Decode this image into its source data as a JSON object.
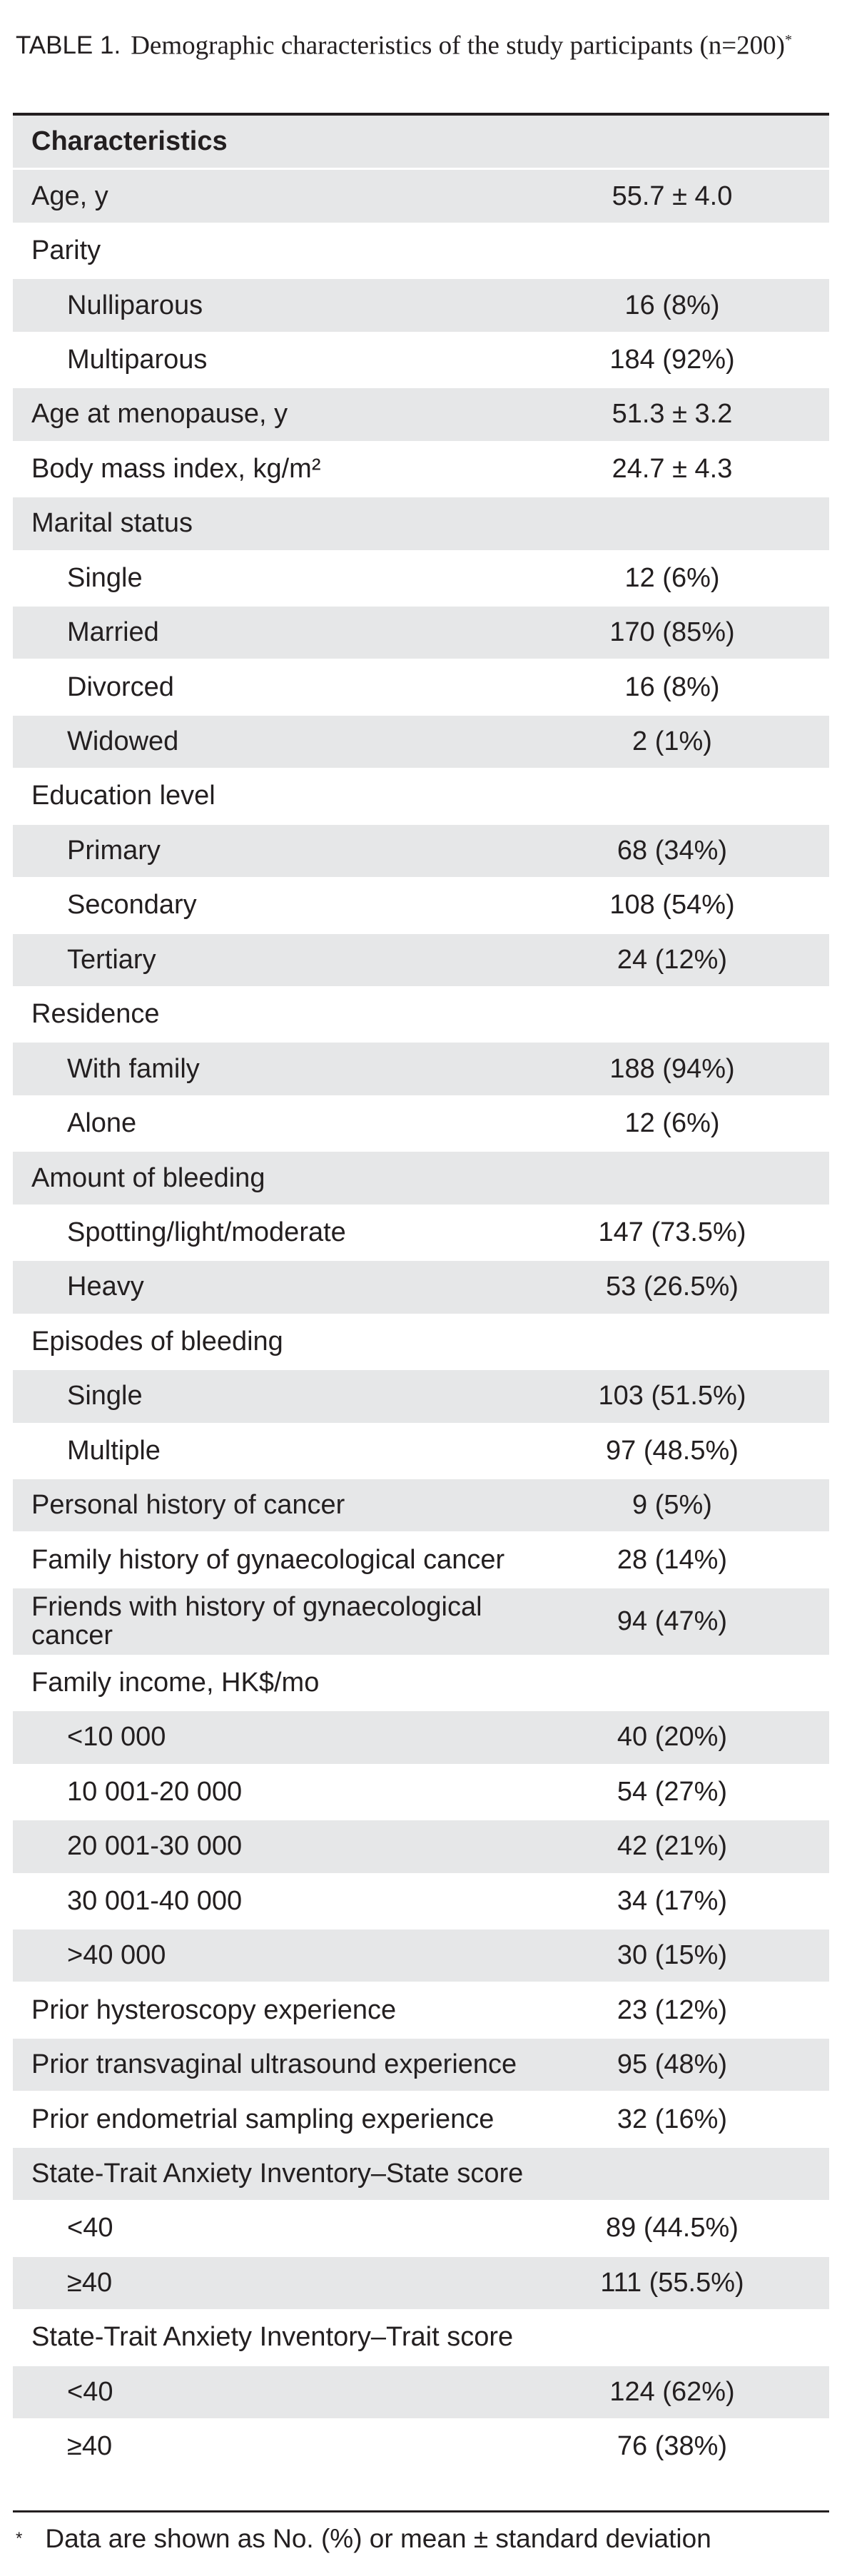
{
  "caption": {
    "label": "TABLE 1.",
    "text": "Demographic characteristics of the study participants (n=200)",
    "marker": "*"
  },
  "table": {
    "header": "Characteristics",
    "rows": [
      {
        "label": "Age, y",
        "value": "55.7 ± 4.0",
        "indent": false,
        "shaded": true
      },
      {
        "label": "Parity",
        "value": "",
        "indent": false,
        "shaded": false
      },
      {
        "label": "Nulliparous",
        "value": "16 (8%)",
        "indent": true,
        "shaded": true
      },
      {
        "label": "Multiparous",
        "value": "184 (92%)",
        "indent": true,
        "shaded": false
      },
      {
        "label": "Age at menopause, y",
        "value": "51.3 ± 3.2",
        "indent": false,
        "shaded": true
      },
      {
        "label": "Body mass index, kg/m²",
        "value": "24.7 ± 4.3",
        "indent": false,
        "shaded": false
      },
      {
        "label": "Marital status",
        "value": "",
        "indent": false,
        "shaded": true
      },
      {
        "label": "Single",
        "value": "12 (6%)",
        "indent": true,
        "shaded": false
      },
      {
        "label": "Married",
        "value": "170 (85%)",
        "indent": true,
        "shaded": true
      },
      {
        "label": "Divorced",
        "value": "16 (8%)",
        "indent": true,
        "shaded": false
      },
      {
        "label": "Widowed",
        "value": "2 (1%)",
        "indent": true,
        "shaded": true
      },
      {
        "label": "Education level",
        "value": "",
        "indent": false,
        "shaded": false
      },
      {
        "label": "Primary",
        "value": "68 (34%)",
        "indent": true,
        "shaded": true
      },
      {
        "label": "Secondary",
        "value": "108 (54%)",
        "indent": true,
        "shaded": false
      },
      {
        "label": "Tertiary",
        "value": "24 (12%)",
        "indent": true,
        "shaded": true
      },
      {
        "label": "Residence",
        "value": "",
        "indent": false,
        "shaded": false
      },
      {
        "label": "With family",
        "value": "188 (94%)",
        "indent": true,
        "shaded": true
      },
      {
        "label": "Alone",
        "value": "12 (6%)",
        "indent": true,
        "shaded": false
      },
      {
        "label": "Amount of bleeding",
        "value": "",
        "indent": false,
        "shaded": true
      },
      {
        "label": "Spotting/light/moderate",
        "value": "147 (73.5%)",
        "indent": true,
        "shaded": false
      },
      {
        "label": "Heavy",
        "value": "53 (26.5%)",
        "indent": true,
        "shaded": true
      },
      {
        "label": "Episodes of bleeding",
        "value": "",
        "indent": false,
        "shaded": false
      },
      {
        "label": "Single",
        "value": "103 (51.5%)",
        "indent": true,
        "shaded": true
      },
      {
        "label": "Multiple",
        "value": "97 (48.5%)",
        "indent": true,
        "shaded": false
      },
      {
        "label": "Personal history of cancer",
        "value": "9 (5%)",
        "indent": false,
        "shaded": true
      },
      {
        "label": "Family history of gynaecological cancer",
        "value": "28 (14%)",
        "indent": false,
        "shaded": false
      },
      {
        "label": "Friends with history of gynaecological cancer",
        "value": "94 (47%)",
        "indent": false,
        "shaded": true,
        "tall": true
      },
      {
        "label": "Family income, HK$/mo",
        "value": "",
        "indent": false,
        "shaded": false
      },
      {
        "label": "<10 000",
        "value": "40 (20%)",
        "indent": true,
        "shaded": true
      },
      {
        "label": "10 001-20 000",
        "value": "54 (27%)",
        "indent": true,
        "shaded": false
      },
      {
        "label": "20 001-30 000",
        "value": "42 (21%)",
        "indent": true,
        "shaded": true
      },
      {
        "label": "30 001-40 000",
        "value": "34 (17%)",
        "indent": true,
        "shaded": false
      },
      {
        "label": ">40 000",
        "value": "30 (15%)",
        "indent": true,
        "shaded": true
      },
      {
        "label": "Prior hysteroscopy experience",
        "value": "23 (12%)",
        "indent": false,
        "shaded": false
      },
      {
        "label": "Prior transvaginal ultrasound experience",
        "value": "95 (48%)",
        "indent": false,
        "shaded": true
      },
      {
        "label": "Prior endometrial sampling experience",
        "value": "32 (16%)",
        "indent": false,
        "shaded": false
      },
      {
        "label": "State-Trait Anxiety Inventory–State score",
        "value": "",
        "indent": false,
        "shaded": true
      },
      {
        "label": "<40",
        "value": "89 (44.5%)",
        "indent": true,
        "shaded": false
      },
      {
        "label": "≥40",
        "value": "111 (55.5%)",
        "indent": true,
        "shaded": true
      },
      {
        "label": "State-Trait Anxiety Inventory–Trait score",
        "value": "",
        "indent": false,
        "shaded": false
      },
      {
        "label": "<40",
        "value": "124 (62%)",
        "indent": true,
        "shaded": true
      },
      {
        "label": "≥40",
        "value": "76 (38%)",
        "indent": true,
        "shaded": false
      }
    ]
  },
  "footnote": {
    "marker": "*",
    "text": "Data are shown as No. (%) or mean ± standard deviation"
  },
  "colors": {
    "shade": "#e6e7e8",
    "text": "#231f20",
    "rule": "#231f20"
  }
}
